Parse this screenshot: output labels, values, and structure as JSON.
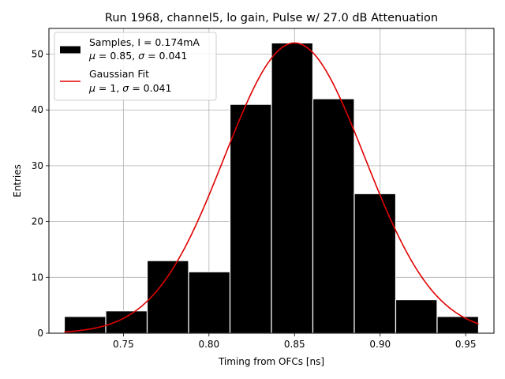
{
  "chart_data": {
    "type": "bar",
    "title": "Run 1968, channel5, lo gain, Pulse w/ 27.0 dB Attenuation",
    "xlabel": "Timing from OFCs [ns]",
    "ylabel": "Entries",
    "xlim": [
      0.7065,
      0.9665
    ],
    "ylim": [
      0,
      54.6
    ],
    "xticks": [
      0.75,
      0.8,
      0.85,
      0.9,
      0.95
    ],
    "xtick_labels": [
      "0.75",
      "0.80",
      "0.85",
      "0.90",
      "0.95"
    ],
    "yticks": [
      0,
      10,
      20,
      30,
      40,
      50
    ],
    "ytick_labels": [
      "0",
      "10",
      "20",
      "30",
      "40",
      "50"
    ],
    "grid": true,
    "legend_position": "top-left",
    "histogram": {
      "bin_edges": [
        0.7155,
        0.7397,
        0.7639,
        0.7881,
        0.8123,
        0.8365,
        0.8607,
        0.8849,
        0.9091,
        0.9333,
        0.9575
      ],
      "counts": [
        3,
        4,
        13,
        11,
        41,
        52,
        42,
        25,
        6,
        3
      ],
      "color": "#000000",
      "edgecolor": "#ffffff"
    },
    "fit": {
      "type": "gaussian",
      "mean": 0.85,
      "sigma": 0.041,
      "amplitude": 52,
      "x_range": [
        0.7155,
        0.9575
      ],
      "color": "#e00000"
    },
    "legend": [
      {
        "kind": "patch",
        "color": "#000000",
        "line1": "Samples, I = 0.174mA",
        "line2_parts": [
          "μ",
          " = 0.85, ",
          "σ",
          " = 0.041"
        ]
      },
      {
        "kind": "line",
        "color": "#e00000",
        "line1": "Gaussian Fit",
        "line2_parts": [
          "μ",
          " = 1, ",
          "σ",
          " = 0.041"
        ]
      }
    ]
  }
}
